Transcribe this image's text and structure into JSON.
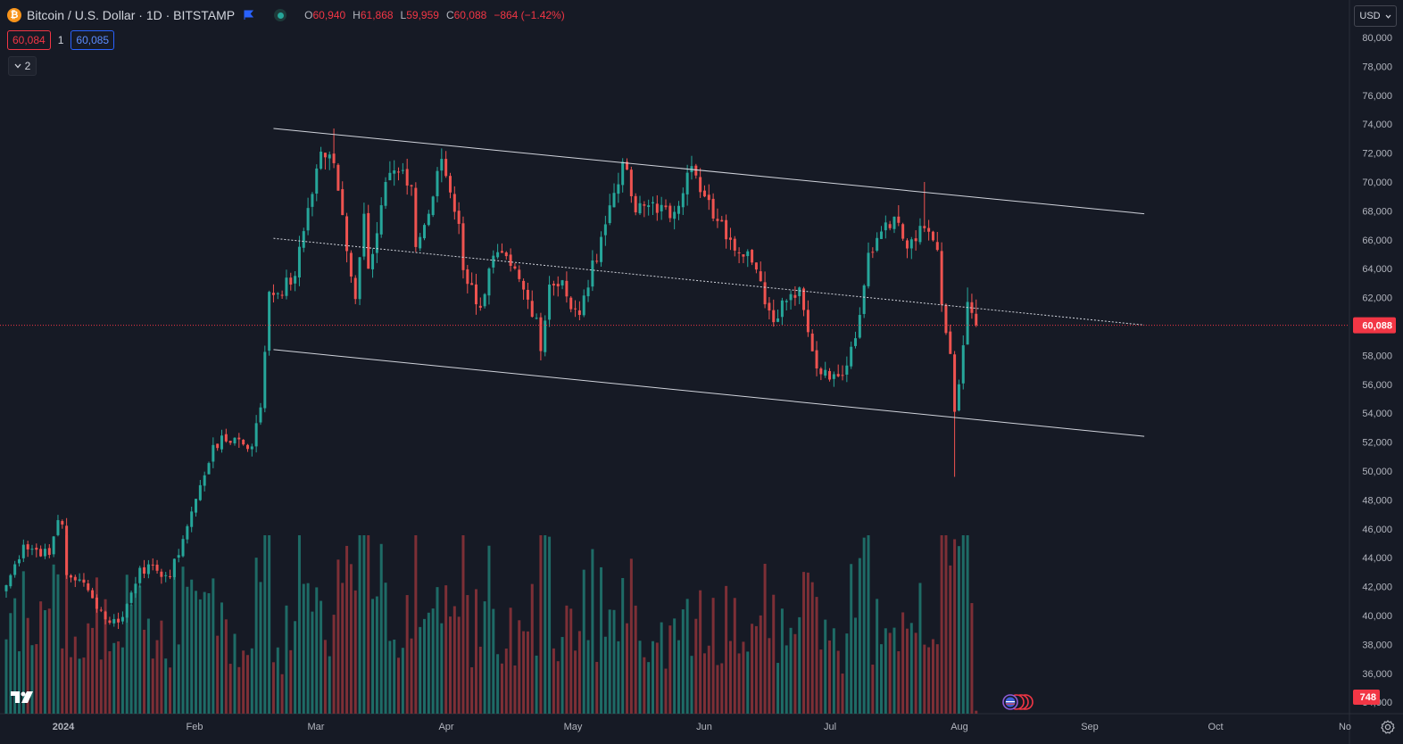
{
  "header": {
    "symbol_icon": "bitcoin-icon",
    "symbol_title": "Bitcoin / U.S. Dollar · 1D · BITSTAMP",
    "ohlc": {
      "o_label": "O",
      "o_value": "60,940",
      "h_label": "H",
      "h_value": "61,868",
      "l_label": "L",
      "l_value": "59,959",
      "c_label": "C",
      "c_value": "60,088",
      "change": "−864 (−1.42%)"
    },
    "bid": "60,084",
    "spread": "1",
    "ask": "60,085",
    "indicators_count": "2"
  },
  "currency": "USD",
  "price_scale": {
    "labels": [
      "80,000",
      "78,000",
      "76,000",
      "74,000",
      "72,000",
      "70,000",
      "68,000",
      "66,000",
      "64,000",
      "62,000",
      "60,000",
      "58,000",
      "56,000",
      "54,000",
      "52,000",
      "50,000",
      "48,000",
      "46,000",
      "44,000",
      "42,000",
      "40,000",
      "38,000",
      "36,000",
      "34,000"
    ],
    "last_price": "60,088",
    "volume_label": "748"
  },
  "time_scale": {
    "labels": [
      "2024",
      "Feb",
      "Mar",
      "Apr",
      "May",
      "Jun",
      "Jul",
      "Aug",
      "Sep",
      "Oct",
      "No"
    ]
  },
  "colors": {
    "background": "#161a25",
    "up": "#26a69a",
    "down": "#ef5350",
    "up_volume": "#1e6b66",
    "down_volume": "#7d2f36",
    "trendline": "#d1d4dc",
    "last_price_line": "#f23645"
  },
  "chart_data": {
    "type": "candlestick",
    "symbol": "BTCUSD",
    "interval": "1D",
    "y_range": [
      33000,
      80500
    ],
    "x_range": [
      "2023-12-29",
      "2024-11-01"
    ],
    "last_price": 60088,
    "anchors": [
      [
        "2023-12-29",
        42100
      ],
      [
        "2024-01-02",
        44900
      ],
      [
        "2024-01-08",
        44200
      ],
      [
        "2024-01-10",
        46600
      ],
      [
        "2024-01-11",
        46300
      ],
      [
        "2024-01-12",
        42800
      ],
      [
        "2024-01-15",
        42500
      ],
      [
        "2024-01-18",
        41200
      ],
      [
        "2024-01-22",
        39500
      ],
      [
        "2024-01-25",
        39900
      ],
      [
        "2024-01-29",
        43300
      ],
      [
        "2024-02-02",
        43100
      ],
      [
        "2024-02-05",
        42700
      ],
      [
        "2024-02-08",
        45300
      ],
      [
        "2024-02-10",
        47200
      ],
      [
        "2024-02-13",
        49700
      ],
      [
        "2024-02-15",
        51800
      ],
      [
        "2024-02-20",
        52300
      ],
      [
        "2024-02-24",
        51700
      ],
      [
        "2024-02-26",
        54400
      ],
      [
        "2024-02-28",
        62400
      ],
      [
        "2024-03-01",
        62300
      ],
      [
        "2024-03-05",
        63500
      ],
      [
        "2024-03-08",
        68200
      ],
      [
        "2024-03-11",
        72100
      ],
      [
        "2024-03-14",
        71300
      ],
      [
        "2024-03-15",
        69400
      ],
      [
        "2024-03-19",
        61900
      ],
      [
        "2024-03-21",
        67800
      ],
      [
        "2024-03-22",
        64000
      ],
      [
        "2024-03-26",
        70000
      ],
      [
        "2024-03-28",
        70800
      ],
      [
        "2024-04-01",
        69700
      ],
      [
        "2024-04-02",
        65500
      ],
      [
        "2024-04-05",
        67800
      ],
      [
        "2024-04-08",
        71600
      ],
      [
        "2024-04-12",
        67100
      ],
      [
        "2024-04-13",
        63900
      ],
      [
        "2024-04-17",
        61300
      ],
      [
        "2024-04-20",
        64900
      ],
      [
        "2024-04-24",
        64200
      ],
      [
        "2024-04-30",
        60600
      ],
      [
        "2024-05-01",
        58300
      ],
      [
        "2024-05-03",
        62900
      ],
      [
        "2024-05-06",
        63200
      ],
      [
        "2024-05-08",
        61200
      ],
      [
        "2024-05-10",
        60800
      ],
      [
        "2024-05-15",
        66200
      ],
      [
        "2024-05-20",
        71400
      ],
      [
        "2024-05-23",
        67900
      ],
      [
        "2024-05-27",
        68600
      ],
      [
        "2024-05-31",
        67500
      ],
      [
        "2024-06-05",
        71100
      ],
      [
        "2024-06-07",
        69300
      ],
      [
        "2024-06-11",
        67300
      ],
      [
        "2024-06-14",
        66000
      ],
      [
        "2024-06-18",
        65200
      ],
      [
        "2024-06-24",
        60300
      ],
      [
        "2024-06-26",
        61800
      ],
      [
        "2024-06-30",
        62700
      ],
      [
        "2024-07-04",
        57100
      ],
      [
        "2024-07-05",
        56700
      ],
      [
        "2024-07-08",
        56700
      ],
      [
        "2024-07-11",
        57300
      ],
      [
        "2024-07-14",
        60800
      ],
      [
        "2024-07-16",
        65100
      ],
      [
        "2024-07-20",
        67200
      ],
      [
        "2024-07-22",
        67600
      ],
      [
        "2024-07-25",
        65400
      ],
      [
        "2024-07-29",
        66800
      ],
      [
        "2024-08-01",
        65300
      ],
      [
        "2024-08-02",
        61500
      ],
      [
        "2024-08-04",
        58100
      ],
      [
        "2024-08-05",
        54100
      ],
      [
        "2024-08-06",
        56000
      ],
      [
        "2024-08-08",
        61700
      ],
      [
        "2024-08-09",
        60940
      ],
      [
        "2024-08-10",
        60088
      ]
    ],
    "volume_scale_max": 45000
  },
  "drawings": {
    "upper_channel": [
      [
        "2024-02-29",
        73700
      ],
      [
        "2024-09-18",
        67800
      ]
    ],
    "mid_line": [
      [
        "2024-02-29",
        66100
      ],
      [
        "2024-09-18",
        60100
      ]
    ],
    "lower_channel": [
      [
        "2024-02-29",
        58400
      ],
      [
        "2024-09-18",
        52400
      ]
    ]
  },
  "icons": {
    "logo": "tradingview-logo",
    "events": "economic-events-icon",
    "settings": "gear-icon",
    "flag": "flag-icon",
    "chevron": "chevron-down-icon"
  }
}
